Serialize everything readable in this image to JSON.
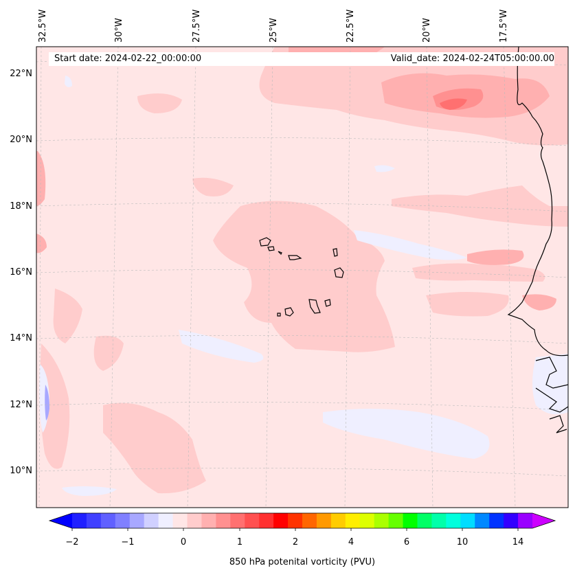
{
  "map": {
    "start_label": "Start date: 2024-02-22_00:00:00",
    "valid_label": "Valid_date: 2024-02-24T05:00:00.00",
    "lon_labels": [
      "32.5°W",
      "30°W",
      "27.5°W",
      "25°W",
      "22.5°W",
      "20°W",
      "17.5°W"
    ],
    "lat_labels": [
      "22°N",
      "20°N",
      "18°N",
      "16°N",
      "14°N",
      "12°N",
      "10°N"
    ]
  },
  "colorbar": {
    "label": "850 hPa potenital vorticity (PVU)",
    "ticks": [
      "−2",
      "−1",
      "0",
      "1",
      "2",
      "4",
      "6",
      "10",
      "14"
    ],
    "colors": [
      "#0000ff",
      "#2020ff",
      "#4040ff",
      "#6060ff",
      "#8080ff",
      "#a8a8ff",
      "#d0d0ff",
      "#efefff",
      "#ffe6e6",
      "#ffcccc",
      "#ffb0b0",
      "#ff9090",
      "#ff7070",
      "#ff5050",
      "#ff3030",
      "#ff0000",
      "#ff3300",
      "#ff6600",
      "#ff9900",
      "#ffcc00",
      "#ffee00",
      "#ddff00",
      "#aaff00",
      "#66ff00",
      "#00ff00",
      "#00ff66",
      "#00ffaa",
      "#00ffdd",
      "#00ddff",
      "#0088ff",
      "#0033ff",
      "#3300ff",
      "#9900ff",
      "#cc00ff"
    ]
  }
}
